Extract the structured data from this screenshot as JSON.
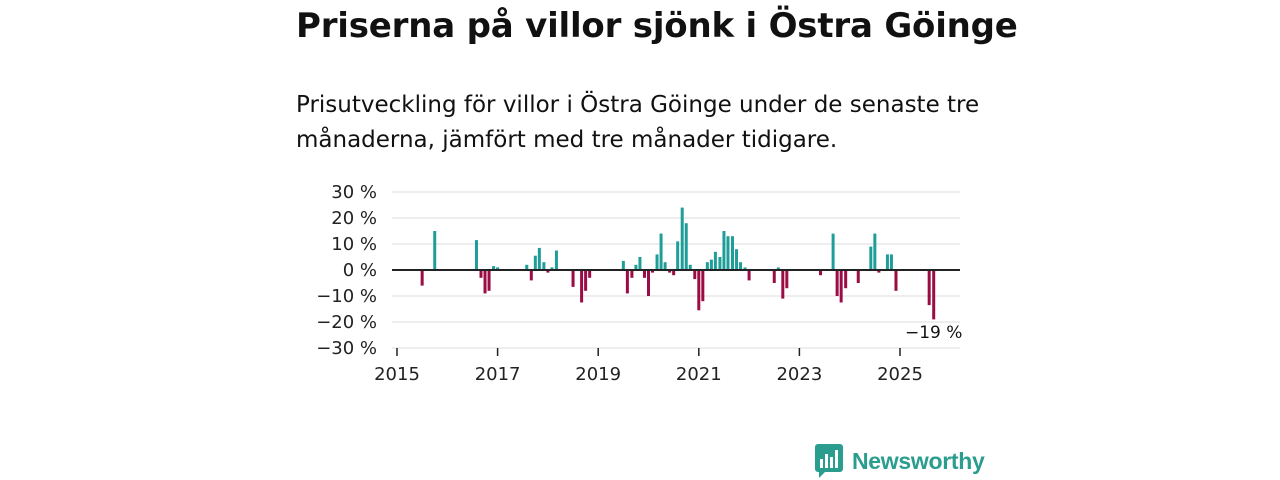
{
  "title": "Priserna på villor sjönk i Östra Göinge",
  "subtitle": "Prisutveckling för villor i Östra Göinge under de senaste tre månaderna, jämfört med tre månader tidigare.",
  "brand": {
    "name": "Newsworthy",
    "icon": "newsworthy-bar-chart-icon"
  },
  "colors": {
    "positive": "#1f9e99",
    "negative": "#9b0b44",
    "grid": "#dddddd",
    "zero_line": "#222222",
    "brand": "#2a9d8f"
  },
  "chart_data": {
    "type": "bar",
    "y_tick_labels": [
      "30 %",
      "20 %",
      "10 %",
      "0 %",
      "−10 %",
      "−20 %",
      "−30 %"
    ],
    "y_ticks": [
      30,
      20,
      10,
      0,
      -10,
      -20,
      -30
    ],
    "x_tick_labels": [
      "2015",
      "2017",
      "2019",
      "2021",
      "2023",
      "2025"
    ],
    "x_ticks": [
      2015,
      2017,
      2019,
      2021,
      2023,
      2025
    ],
    "ylim": [
      -30,
      30
    ],
    "xlim": [
      2015,
      2026.2
    ],
    "annotation": {
      "text": "−19 %",
      "x": 2025.67,
      "value": -19
    },
    "unit": "%",
    "points": [
      [
        2015.5,
        -6
      ],
      [
        2015.75,
        15
      ],
      [
        2016.58,
        11.5
      ],
      [
        2016.67,
        -3
      ],
      [
        2016.75,
        -9
      ],
      [
        2016.83,
        -8
      ],
      [
        2016.92,
        1.5
      ],
      [
        2017.0,
        1
      ],
      [
        2017.58,
        2
      ],
      [
        2017.67,
        -4
      ],
      [
        2017.75,
        5.5
      ],
      [
        2017.83,
        8.5
      ],
      [
        2017.92,
        3
      ],
      [
        2018.0,
        -1
      ],
      [
        2018.08,
        1
      ],
      [
        2018.17,
        7.5
      ],
      [
        2018.5,
        -6.5
      ],
      [
        2018.67,
        -12.5
      ],
      [
        2018.75,
        -8
      ],
      [
        2018.83,
        -3
      ],
      [
        2019.5,
        3.5
      ],
      [
        2019.58,
        -9
      ],
      [
        2019.67,
        -3
      ],
      [
        2019.75,
        2
      ],
      [
        2019.83,
        5
      ],
      [
        2019.92,
        -3
      ],
      [
        2020.0,
        -10
      ],
      [
        2020.08,
        -1
      ],
      [
        2020.17,
        6
      ],
      [
        2020.25,
        14
      ],
      [
        2020.33,
        3
      ],
      [
        2020.42,
        -1
      ],
      [
        2020.5,
        -2
      ],
      [
        2020.58,
        11
      ],
      [
        2020.67,
        24
      ],
      [
        2020.75,
        18
      ],
      [
        2020.83,
        2
      ],
      [
        2020.92,
        -3.5
      ],
      [
        2021.0,
        -15.5
      ],
      [
        2021.08,
        -12
      ],
      [
        2021.17,
        3
      ],
      [
        2021.25,
        4
      ],
      [
        2021.33,
        7
      ],
      [
        2021.42,
        5
      ],
      [
        2021.5,
        15
      ],
      [
        2021.58,
        13
      ],
      [
        2021.67,
        13
      ],
      [
        2021.75,
        8
      ],
      [
        2021.83,
        3
      ],
      [
        2021.92,
        1
      ],
      [
        2022.0,
        -4
      ],
      [
        2022.5,
        -5
      ],
      [
        2022.58,
        1
      ],
      [
        2022.67,
        -11
      ],
      [
        2022.75,
        -7
      ],
      [
        2023.42,
        -2
      ],
      [
        2023.67,
        14
      ],
      [
        2023.75,
        -10
      ],
      [
        2023.83,
        -12.5
      ],
      [
        2023.92,
        -7
      ],
      [
        2024.17,
        -5
      ],
      [
        2024.42,
        9
      ],
      [
        2024.5,
        14
      ],
      [
        2024.58,
        -1
      ],
      [
        2024.75,
        6
      ],
      [
        2024.83,
        6
      ],
      [
        2024.92,
        -8
      ],
      [
        2025.58,
        -13.5
      ],
      [
        2025.67,
        -19
      ]
    ]
  }
}
